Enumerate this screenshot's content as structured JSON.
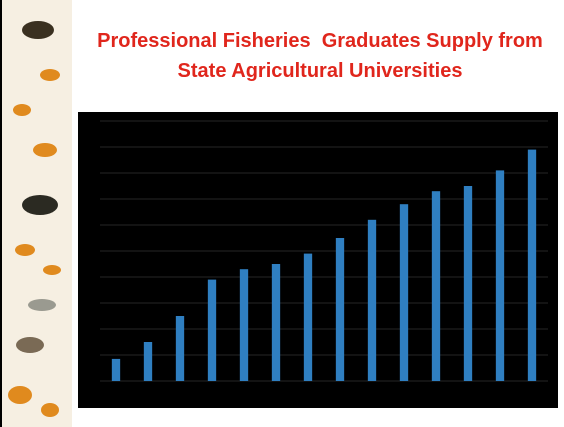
{
  "chart_data": {
    "type": "bar",
    "title": "Professional Fisheries  Graduates Supply from State Agricultural Universities",
    "categories": [
      null,
      null,
      null,
      null,
      null,
      null,
      null,
      null,
      null,
      null,
      null,
      null,
      null,
      null
    ],
    "values": [
      0.85,
      1.5,
      2.5,
      3.9,
      4.3,
      4.5,
      4.9,
      5.5,
      6.2,
      6.8,
      7.3,
      7.5,
      8.1,
      8.9
    ],
    "color": "#2f7fc1",
    "ylim": [
      0,
      10
    ],
    "yticks": [
      0,
      1,
      2,
      3,
      4,
      5,
      6,
      7,
      8,
      9,
      10
    ],
    "grid": true
  }
}
